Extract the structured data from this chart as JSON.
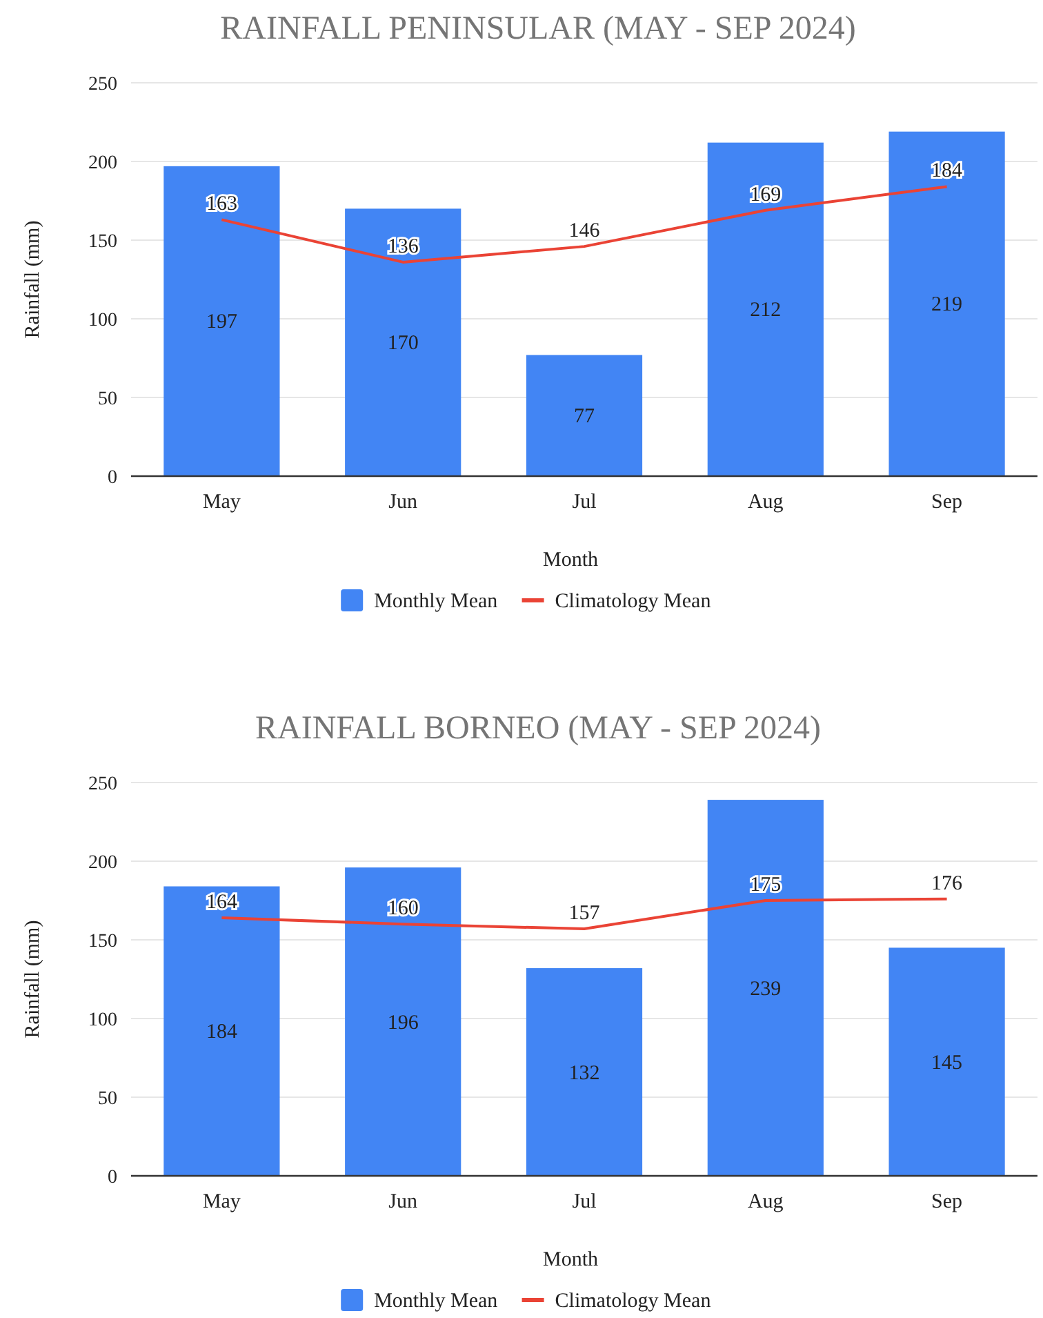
{
  "chart_data": [
    {
      "type": "bar",
      "title": "RAINFALL PENINSULAR (MAY - SEP 2024)",
      "xlabel": "Month",
      "ylabel": "Rainfall (mm)",
      "categories": [
        "May",
        "Jun",
        "Jul",
        "Aug",
        "Sep"
      ],
      "series": [
        {
          "name": "Monthly Mean",
          "color": "#4285f4",
          "values": [
            197,
            170,
            77,
            212,
            219
          ]
        },
        {
          "name": "Climatology Mean",
          "type": "line",
          "color": "#ea4335",
          "values": [
            163,
            136,
            146,
            169,
            184
          ]
        }
      ],
      "ylim": [
        0,
        250
      ],
      "yticks": [
        0,
        50,
        100,
        150,
        200,
        250
      ],
      "grid": "y",
      "legend": "bottom",
      "data_labels": true
    },
    {
      "type": "bar",
      "title": "RAINFALL BORNEO (MAY - SEP 2024)",
      "xlabel": "Month",
      "ylabel": "Rainfall (mm)",
      "categories": [
        "May",
        "Jun",
        "Jul",
        "Aug",
        "Sep"
      ],
      "series": [
        {
          "name": "Monthly Mean",
          "color": "#4285f4",
          "values": [
            184,
            196,
            132,
            239,
            145
          ]
        },
        {
          "name": "Climatology Mean",
          "type": "line",
          "color": "#ea4335",
          "values": [
            164,
            160,
            157,
            175,
            176
          ]
        }
      ],
      "ylim": [
        0,
        250
      ],
      "yticks": [
        0,
        50,
        100,
        150,
        200,
        250
      ],
      "grid": "y",
      "legend": "bottom",
      "data_labels": true
    }
  ]
}
